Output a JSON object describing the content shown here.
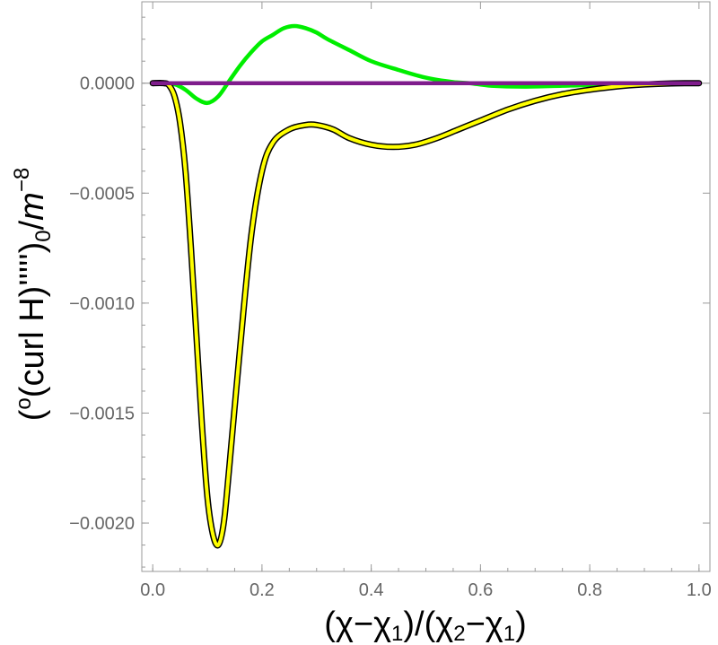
{
  "chart_data": {
    "type": "line",
    "title": "",
    "xlabel": "(χ−χ₁)/(χ₂−χ₁)",
    "xlabel_parts": [
      "(χ−χ",
      "1",
      ")/(χ",
      "2",
      "−χ",
      "1",
      ")"
    ],
    "ylabel": "(°(curl H)''''')₀/m⁻⁸",
    "ylabel_parts": [
      "(",
      "o",
      "(curl H)''''')",
      "0",
      "/",
      "m",
      "−8"
    ],
    "xlim": [
      -0.02,
      1.02
    ],
    "ylim": [
      -0.00222,
      0.00037
    ],
    "x_ticks": [
      0.0,
      0.2,
      0.4,
      0.6,
      0.8,
      1.0
    ],
    "x_tick_labels": [
      "0.0",
      "0.2",
      "0.4",
      "0.6",
      "0.8",
      "1.0"
    ],
    "y_ticks": [
      0.0,
      -0.0005,
      -0.001,
      -0.0015,
      -0.002
    ],
    "y_tick_labels": [
      "0.0000",
      "−0.0005",
      "−0.0010",
      "−0.0015",
      "−0.0020"
    ],
    "grid": false,
    "frame": true,
    "zero_line": true,
    "colors": {
      "frame": "#999999",
      "tick_label": "#666666",
      "zero_line": "#bbbbbb"
    },
    "series": [
      {
        "color": "#00ee00",
        "outline": false,
        "points": [
          [
            0.0,
            0
          ],
          [
            0.02,
            0
          ],
          [
            0.04,
            -5e-06
          ],
          [
            0.06,
            -3e-05
          ],
          [
            0.08,
            -7e-05
          ],
          [
            0.1,
            -9e-05
          ],
          [
            0.12,
            -6e-05
          ],
          [
            0.14,
            1e-05
          ],
          [
            0.16,
            8e-05
          ],
          [
            0.18,
            0.00014
          ],
          [
            0.2,
            0.00019
          ],
          [
            0.22,
            0.00022
          ],
          [
            0.24,
            0.00025
          ],
          [
            0.26,
            0.00026
          ],
          [
            0.28,
            0.00025
          ],
          [
            0.3,
            0.00023
          ],
          [
            0.32,
            0.0002
          ],
          [
            0.36,
            0.00015
          ],
          [
            0.4,
            0.0001
          ],
          [
            0.45,
            6e-05
          ],
          [
            0.5,
            2.5e-05
          ],
          [
            0.55,
            5e-06
          ],
          [
            0.58,
            0
          ],
          [
            0.62,
            -1.2e-05
          ],
          [
            0.68,
            -1.6e-05
          ],
          [
            0.75,
            -1.2e-05
          ],
          [
            0.85,
            -5e-06
          ],
          [
            1.0,
            0
          ]
        ]
      },
      {
        "color": "#ffff00",
        "outline": true,
        "points": [
          [
            0.0,
            0
          ],
          [
            0.02,
            0
          ],
          [
            0.03,
            -1e-05
          ],
          [
            0.04,
            -6e-05
          ],
          [
            0.05,
            -0.00018
          ],
          [
            0.06,
            -0.0004
          ],
          [
            0.07,
            -0.00075
          ],
          [
            0.08,
            -0.00115
          ],
          [
            0.09,
            -0.00155
          ],
          [
            0.1,
            -0.00188
          ],
          [
            0.11,
            -0.00205
          ],
          [
            0.12,
            -0.0021
          ],
          [
            0.13,
            -0.002
          ],
          [
            0.14,
            -0.00175
          ],
          [
            0.16,
            -0.0012
          ],
          [
            0.18,
            -0.0007
          ],
          [
            0.2,
            -0.0004
          ],
          [
            0.22,
            -0.00027
          ],
          [
            0.25,
            -0.00021
          ],
          [
            0.28,
            -0.00019
          ],
          [
            0.3,
            -0.00019
          ],
          [
            0.33,
            -0.00021
          ],
          [
            0.36,
            -0.00025
          ],
          [
            0.4,
            -0.00028
          ],
          [
            0.44,
            -0.00029
          ],
          [
            0.48,
            -0.00028
          ],
          [
            0.52,
            -0.00025
          ],
          [
            0.56,
            -0.00021
          ],
          [
            0.6,
            -0.00017
          ],
          [
            0.65,
            -0.00012
          ],
          [
            0.7,
            -8e-05
          ],
          [
            0.75,
            -5e-05
          ],
          [
            0.8,
            -3e-05
          ],
          [
            0.85,
            -1.5e-05
          ],
          [
            0.9,
            -6e-06
          ],
          [
            0.95,
            -1e-06
          ],
          [
            1.0,
            0
          ]
        ]
      },
      {
        "color": "#7f1c8c",
        "outline": false,
        "points": [
          [
            0.0,
            0
          ],
          [
            0.25,
            0
          ],
          [
            0.5,
            0
          ],
          [
            0.75,
            0
          ],
          [
            1.0,
            0
          ]
        ]
      }
    ]
  }
}
